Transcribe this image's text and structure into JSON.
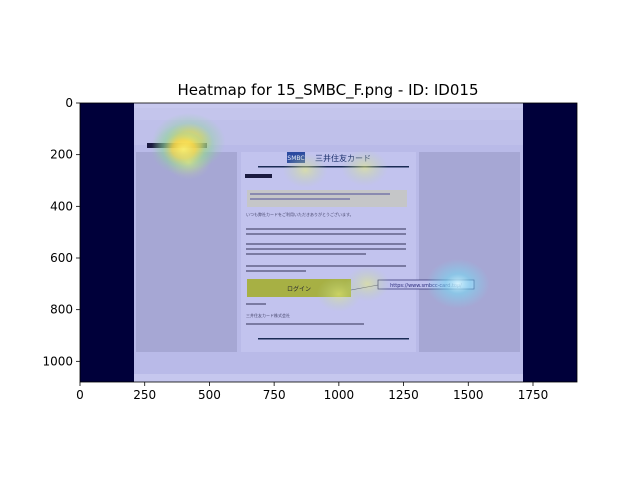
{
  "chart_data": {
    "type": "heatmap",
    "title": "Heatmap for 15_SMBC_F.png - ID: ID015",
    "xlabel": "",
    "ylabel": "",
    "xlim": [
      0,
      1920
    ],
    "ylim": [
      1080,
      0
    ],
    "x_ticks": [
      0,
      250,
      500,
      750,
      1000,
      1250,
      1500,
      1750
    ],
    "y_ticks": [
      0,
      200,
      400,
      600,
      800,
      1000
    ],
    "background_image": "email client screenshot (Mozilla Thunderbird) showing a phishing email impersonating SMBC",
    "screenshot_text": {
      "brand_logo": "SMBC",
      "brand_name": "三井住友カード",
      "login_button": "ログイン",
      "link_tooltip": "https://www.smbcc-card.top/",
      "greeting": "いつも弊社カードをご利用いただきありがとうございます。",
      "company": "三井住友カード株式会社"
    },
    "hotspots": [
      {
        "x": 420,
        "y": 150,
        "intensity": 1.0
      },
      {
        "x": 400,
        "y": 180,
        "intensity": 0.8
      },
      {
        "x": 1460,
        "y": 700,
        "intensity": 0.75
      },
      {
        "x": 1100,
        "y": 250,
        "intensity": 0.35
      },
      {
        "x": 870,
        "y": 260,
        "intensity": 0.3
      },
      {
        "x": 1000,
        "y": 740,
        "intensity": 0.3
      },
      {
        "x": 420,
        "y": 230,
        "intensity": 0.3
      },
      {
        "x": 1110,
        "y": 700,
        "intensity": 0.3
      }
    ],
    "colors": {
      "outside": "#00003a",
      "overlay": "#b7b8e6",
      "hot": "#ffe84a",
      "warm": "#8ccf8c",
      "cool": "#6ad0f0"
    }
  }
}
